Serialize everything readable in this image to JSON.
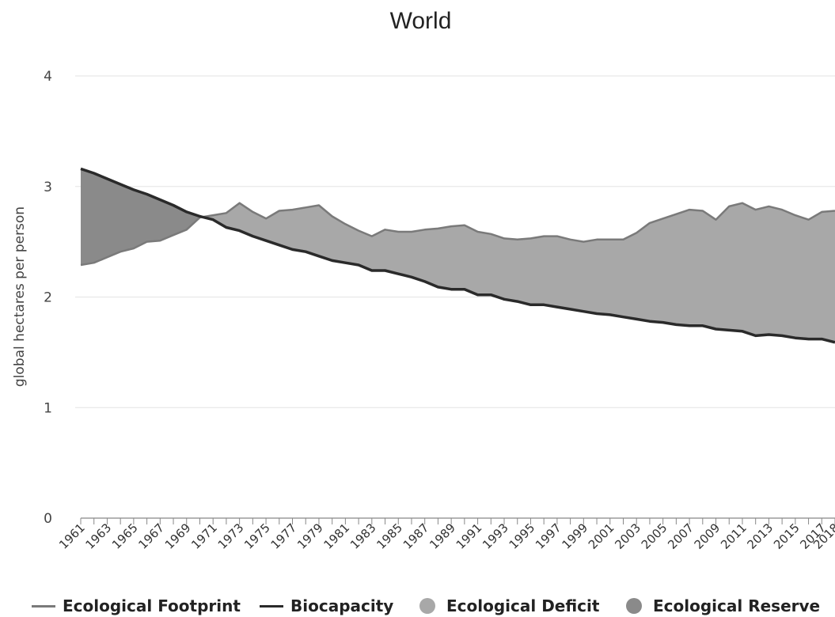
{
  "chart_data": {
    "type": "area",
    "title": "World",
    "ylabel": "global hectares per person",
    "xlabel": "",
    "ylim": [
      0,
      4
    ],
    "yticks": [
      0,
      1,
      2,
      3,
      4
    ],
    "x": [
      1961,
      1962,
      1963,
      1964,
      1965,
      1966,
      1967,
      1968,
      1969,
      1970,
      1971,
      1972,
      1973,
      1974,
      1975,
      1976,
      1977,
      1978,
      1979,
      1980,
      1981,
      1982,
      1983,
      1984,
      1985,
      1986,
      1987,
      1988,
      1989,
      1990,
      1991,
      1992,
      1993,
      1994,
      1995,
      1996,
      1997,
      1998,
      1999,
      2000,
      2001,
      2002,
      2003,
      2004,
      2005,
      2006,
      2007,
      2008,
      2009,
      2010,
      2011,
      2012,
      2013,
      2014,
      2015,
      2016,
      2017,
      2018
    ],
    "xtick_labels": [
      "1961",
      "1963",
      "1965",
      "1967",
      "1969",
      "1971",
      "1973",
      "1975",
      "1977",
      "1979",
      "1981",
      "1983",
      "1985",
      "1987",
      "1989",
      "1991",
      "1993",
      "1995",
      "1997",
      "1999",
      "2001",
      "2003",
      "2005",
      "2007",
      "2009",
      "2011",
      "2013",
      "2015",
      "2017",
      "2018"
    ],
    "series": [
      {
        "name": "Ecological Footprint",
        "type": "line",
        "color": "#7a7a7a",
        "values": [
          2.29,
          2.31,
          2.36,
          2.41,
          2.44,
          2.5,
          2.51,
          2.56,
          2.61,
          2.72,
          2.74,
          2.76,
          2.85,
          2.77,
          2.71,
          2.78,
          2.79,
          2.81,
          2.83,
          2.73,
          2.66,
          2.6,
          2.55,
          2.61,
          2.59,
          2.59,
          2.61,
          2.62,
          2.64,
          2.65,
          2.59,
          2.57,
          2.53,
          2.52,
          2.53,
          2.55,
          2.55,
          2.52,
          2.5,
          2.52,
          2.52,
          2.52,
          2.58,
          2.67,
          2.71,
          2.75,
          2.79,
          2.78,
          2.7,
          2.82,
          2.85,
          2.79,
          2.82,
          2.79,
          2.74,
          2.7,
          2.77,
          2.78
        ]
      },
      {
        "name": "Biocapacity",
        "type": "line",
        "color": "#2a2a2a",
        "values": [
          3.16,
          3.12,
          3.07,
          3.02,
          2.97,
          2.93,
          2.88,
          2.83,
          2.77,
          2.73,
          2.7,
          2.63,
          2.6,
          2.55,
          2.51,
          2.47,
          2.43,
          2.41,
          2.37,
          2.33,
          2.31,
          2.29,
          2.24,
          2.24,
          2.21,
          2.18,
          2.14,
          2.09,
          2.07,
          2.07,
          2.02,
          2.02,
          1.98,
          1.96,
          1.93,
          1.93,
          1.91,
          1.89,
          1.87,
          1.85,
          1.84,
          1.82,
          1.8,
          1.78,
          1.77,
          1.75,
          1.74,
          1.74,
          1.71,
          1.7,
          1.69,
          1.65,
          1.66,
          1.65,
          1.63,
          1.62,
          1.62,
          1.59
        ]
      },
      {
        "name": "Ecological Deficit",
        "type": "area",
        "color": "#a8a8a8"
      },
      {
        "name": "Ecological Reserve",
        "type": "area",
        "color": "#8a8a8a"
      }
    ],
    "grid": true,
    "legend_position": "bottom"
  }
}
